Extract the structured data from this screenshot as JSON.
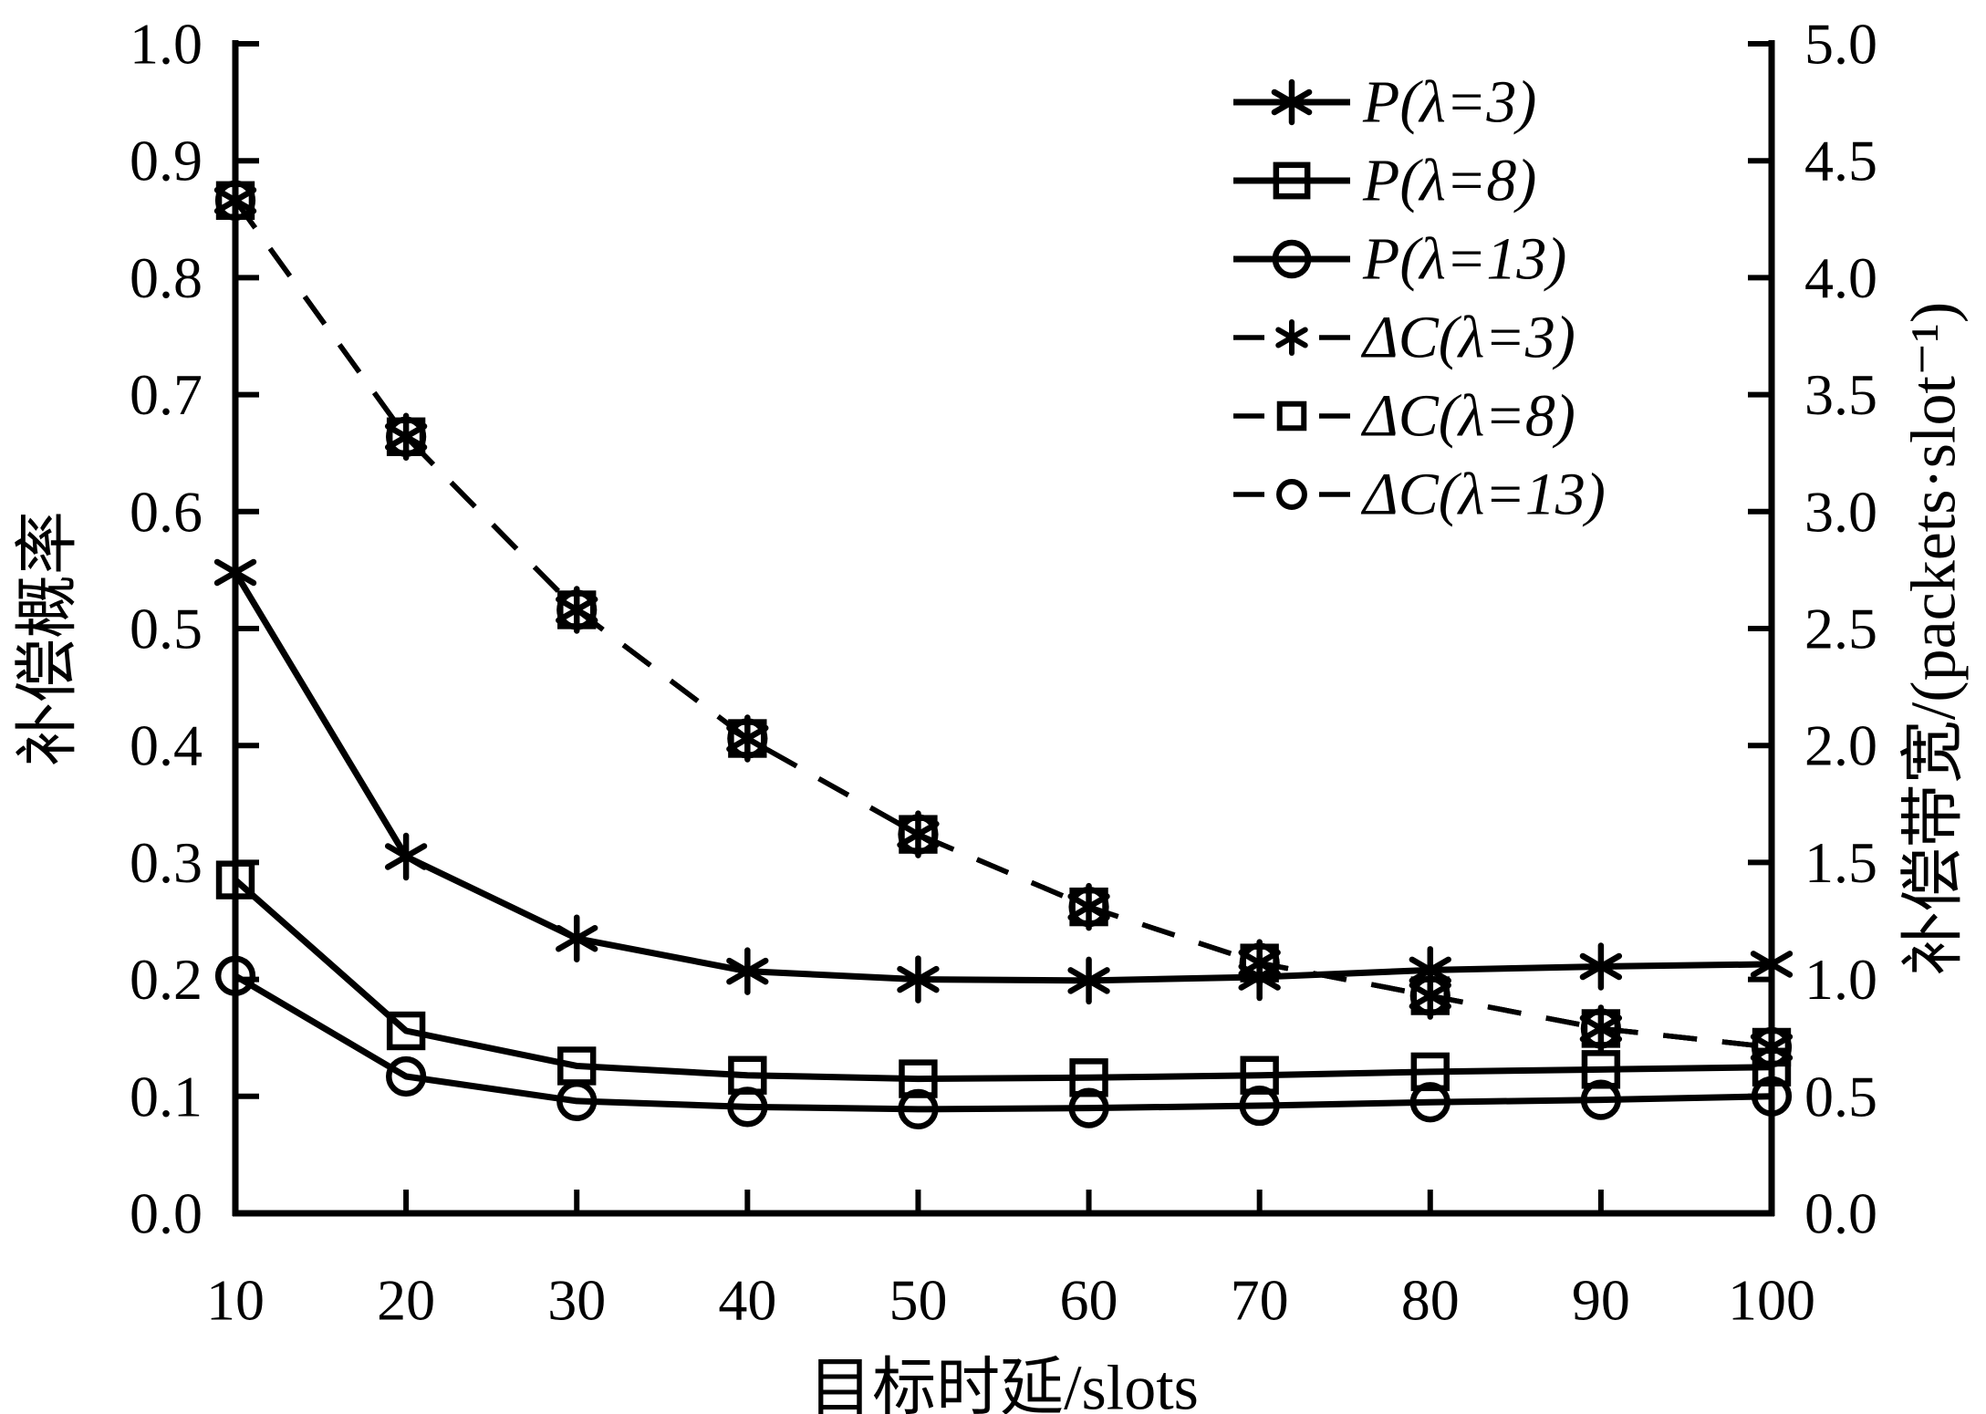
{
  "figure": {
    "background": "#ffffff",
    "ink_color": "#000000"
  },
  "axes": {
    "x": {
      "title": "目标时延/slots",
      "min": 10,
      "max": 100,
      "tick_labels": [
        "10",
        "20",
        "30",
        "40",
        "50",
        "60",
        "70",
        "80",
        "90",
        "100"
      ]
    },
    "y_left": {
      "title": "补偿概率",
      "min": 0.0,
      "max": 1.0,
      "tick_labels": [
        "0.0",
        "0.1",
        "0.2",
        "0.3",
        "0.4",
        "0.5",
        "0.6",
        "0.7",
        "0.8",
        "0.9",
        "1.0"
      ]
    },
    "y_right": {
      "title": "补偿带宽/(packets·slot⁻¹)",
      "min": 0.0,
      "max": 5.0,
      "tick_labels": [
        "0.0",
        "0.5",
        "1.0",
        "1.5",
        "2.0",
        "2.5",
        "3.0",
        "3.5",
        "4.0",
        "4.5",
        "5.0"
      ]
    }
  },
  "legend": {
    "position": "upper right",
    "entries": [
      {
        "label": "P(λ=3)",
        "line": "solid",
        "marker": "asterisk"
      },
      {
        "label": "P(λ=8)",
        "line": "solid",
        "marker": "square"
      },
      {
        "label": "P(λ=13)",
        "line": "solid",
        "marker": "circle"
      },
      {
        "label": "ΔC(λ=3)",
        "line": "dashed",
        "marker": "asterisk"
      },
      {
        "label": "ΔC(λ=8)",
        "line": "dashed",
        "marker": "square"
      },
      {
        "label": "ΔC(λ=13)",
        "line": "dashed",
        "marker": "circle"
      }
    ]
  },
  "chart_data": {
    "type": "line",
    "title": "",
    "xlabel": "目标时延/slots",
    "ylabel_left": "补偿概率",
    "ylabel_right": "补偿带宽/(packets·slot⁻¹)",
    "xlim": [
      10,
      100
    ],
    "ylim_left": [
      0.0,
      1.0
    ],
    "ylim_right": [
      0.0,
      5.0
    ],
    "grid": false,
    "legend_position": "upper right",
    "x": [
      10,
      20,
      30,
      40,
      50,
      60,
      70,
      80,
      90,
      100
    ],
    "series": [
      {
        "name": "P(λ=3)",
        "axis": "left",
        "line": "solid",
        "marker": "asterisk",
        "values": [
          0.548,
          0.305,
          0.235,
          0.207,
          0.2,
          0.199,
          0.202,
          0.208,
          0.211,
          0.213
        ]
      },
      {
        "name": "P(λ=8)",
        "axis": "left",
        "line": "solid",
        "marker": "square",
        "values": [
          0.285,
          0.156,
          0.126,
          0.118,
          0.115,
          0.116,
          0.118,
          0.121,
          0.123,
          0.125
        ]
      },
      {
        "name": "P(λ=13)",
        "axis": "left",
        "line": "solid",
        "marker": "circle",
        "values": [
          0.203,
          0.117,
          0.096,
          0.091,
          0.089,
          0.09,
          0.092,
          0.095,
          0.097,
          0.1
        ]
      },
      {
        "name": "ΔC(λ=3)",
        "axis": "right",
        "line": "dashed",
        "marker": "asterisk",
        "values": [
          4.33,
          3.32,
          2.58,
          2.03,
          1.62,
          1.31,
          1.07,
          0.93,
          0.79,
          0.71
        ]
      },
      {
        "name": "ΔC(λ=8)",
        "axis": "right",
        "line": "dashed",
        "marker": "square",
        "values": [
          4.33,
          3.32,
          2.58,
          2.03,
          1.62,
          1.31,
          1.07,
          0.93,
          0.79,
          0.71
        ]
      },
      {
        "name": "ΔC(λ=13)",
        "axis": "right",
        "line": "dashed",
        "marker": "circle",
        "values": [
          4.33,
          3.32,
          2.58,
          2.03,
          1.62,
          1.31,
          1.07,
          0.93,
          0.79,
          0.71
        ]
      }
    ]
  }
}
